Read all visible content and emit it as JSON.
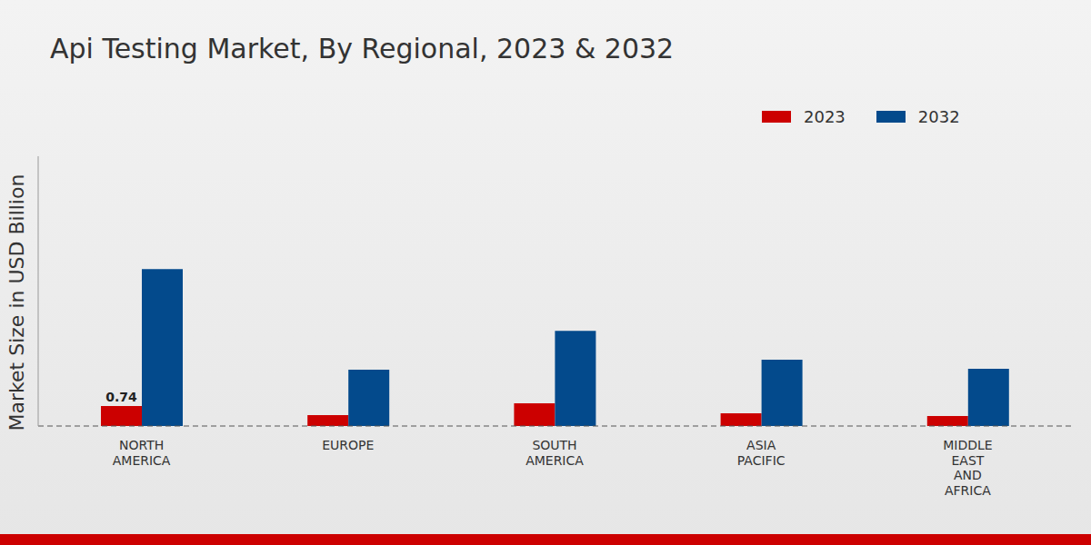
{
  "chart_data": {
    "type": "bar",
    "title": "Api Testing Market, By Regional, 2023 & 2032",
    "y_label": "Market Size in USD Billion",
    "categories": [
      "NORTH AMERICA",
      "EUROPE",
      "SOUTH AMERICA",
      "ASIA PACIFIC",
      "MIDDLE EAST AND AFRICA"
    ],
    "series": [
      {
        "name": "2023",
        "color": "#cc0000",
        "values": [
          0.74,
          0.4,
          0.84,
          0.47,
          0.37
        ],
        "value_labels": [
          "0.74",
          null,
          null,
          null,
          null
        ]
      },
      {
        "name": "2032",
        "color": "#034a8c",
        "values": [
          5.82,
          2.09,
          3.53,
          2.46,
          2.12
        ]
      }
    ],
    "ylim": [
      0,
      10
    ],
    "grid": false,
    "legend": "top right",
    "tick_labels": "x"
  }
}
